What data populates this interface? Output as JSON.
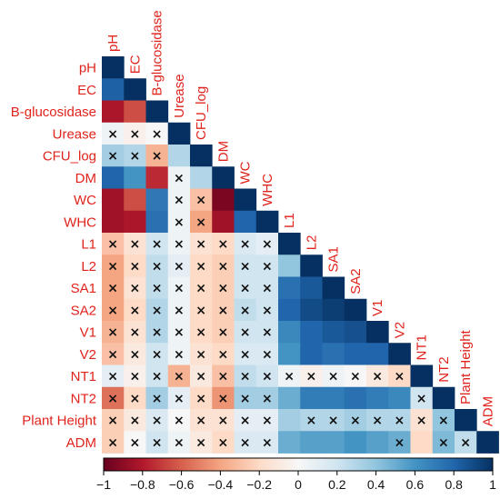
{
  "chart_data": {
    "type": "heatmap",
    "subtype": "lower-triangular correlation matrix",
    "variables": [
      "pH",
      "EC",
      "B-glucosidase",
      "Urease",
      "CFU_log",
      "DM",
      "WC",
      "WHC",
      "L1",
      "L2",
      "SA1",
      "SA2",
      "V1",
      "V2",
      "NT1",
      "NT2",
      "Plant Height",
      "ADM"
    ],
    "rows": [
      {
        "values": [
          1
        ],
        "nonsig": []
      },
      {
        "values": [
          0.82,
          1
        ],
        "nonsig": []
      },
      {
        "values": [
          -0.82,
          -0.65,
          1
        ],
        "nonsig": []
      },
      {
        "values": [
          0.05,
          -0.05,
          0.0,
          1
        ],
        "nonsig": [
          0,
          1,
          2
        ]
      },
      {
        "values": [
          0.35,
          0.3,
          -0.35,
          0.3,
          1
        ],
        "nonsig": [
          0,
          1,
          2
        ]
      },
      {
        "values": [
          0.8,
          0.6,
          -0.75,
          0.05,
          0.3,
          1
        ],
        "nonsig": [
          3
        ]
      },
      {
        "values": [
          -0.85,
          -0.65,
          0.72,
          0.05,
          -0.3,
          -0.95,
          1
        ],
        "nonsig": [
          3,
          4
        ]
      },
      {
        "values": [
          -0.85,
          -0.82,
          0.75,
          0.05,
          -0.4,
          -0.85,
          0.8,
          1
        ],
        "nonsig": [
          3,
          4
        ]
      },
      {
        "values": [
          -0.3,
          -0.15,
          0.2,
          0.05,
          -0.15,
          -0.2,
          0.15,
          0.1,
          1
        ],
        "nonsig": [
          0,
          1,
          2,
          3,
          4,
          5,
          6,
          7
        ]
      },
      {
        "values": [
          -0.4,
          -0.2,
          0.25,
          0.1,
          -0.2,
          -0.25,
          0.2,
          0.2,
          0.4,
          1
        ],
        "nonsig": [
          0,
          1,
          2,
          3,
          4,
          5,
          6,
          7
        ]
      },
      {
        "values": [
          -0.4,
          -0.15,
          0.25,
          0.05,
          -0.2,
          -0.25,
          0.2,
          0.2,
          0.75,
          0.85,
          1
        ],
        "nonsig": [
          0,
          1,
          2,
          3,
          4,
          5,
          6,
          7
        ]
      },
      {
        "values": [
          -0.4,
          -0.2,
          0.3,
          0.05,
          -0.2,
          -0.25,
          0.25,
          0.2,
          0.8,
          0.9,
          0.95,
          1
        ],
        "nonsig": [
          0,
          1,
          2,
          3,
          4,
          5,
          6,
          7
        ]
      },
      {
        "values": [
          -0.35,
          -0.15,
          0.3,
          0.05,
          -0.2,
          -0.25,
          0.2,
          0.2,
          0.65,
          0.8,
          0.85,
          0.88,
          1
        ],
        "nonsig": [
          0,
          1,
          2,
          3,
          4,
          5,
          6,
          7
        ]
      },
      {
        "values": [
          -0.3,
          -0.1,
          0.2,
          0.05,
          -0.15,
          -0.2,
          0.15,
          0.15,
          0.6,
          0.8,
          0.75,
          0.8,
          0.8,
          1
        ],
        "nonsig": [
          0,
          1,
          2,
          3,
          4,
          5,
          6,
          7
        ]
      },
      {
        "values": [
          0.1,
          -0.05,
          0.2,
          -0.35,
          -0.1,
          -0.3,
          0.25,
          0.2,
          0.05,
          -0.05,
          0.05,
          0.0,
          -0.1,
          -0.2,
          1
        ],
        "nonsig": [
          0,
          1,
          2,
          3,
          4,
          5,
          6,
          7,
          8,
          9,
          10,
          11,
          12,
          13
        ]
      },
      {
        "values": [
          -0.55,
          -0.2,
          0.35,
          0.1,
          -0.2,
          -0.45,
          0.35,
          0.35,
          0.5,
          0.7,
          0.7,
          0.75,
          0.7,
          0.65,
          0.2,
          1
        ],
        "nonsig": [
          0,
          1,
          2,
          3,
          4,
          5,
          6,
          7,
          14
        ]
      },
      {
        "values": [
          -0.25,
          -0.1,
          0.15,
          0.0,
          -0.15,
          -0.15,
          0.1,
          0.1,
          0.35,
          0.3,
          0.3,
          0.35,
          0.3,
          0.3,
          -0.15,
          0.4,
          1
        ],
        "nonsig": [
          0,
          1,
          2,
          3,
          4,
          5,
          6,
          7,
          9,
          10,
          11,
          12,
          13,
          14,
          15
        ]
      },
      {
        "values": [
          -0.25,
          0.0,
          0.2,
          0.05,
          -0.1,
          -0.2,
          0.15,
          0.15,
          0.5,
          0.55,
          0.55,
          0.6,
          0.55,
          0.5,
          -0.2,
          0.45,
          0.25,
          1
        ],
        "nonsig": [
          0,
          1,
          2,
          3,
          4,
          5,
          6,
          7,
          13,
          15,
          16
        ]
      }
    ],
    "colorbar": {
      "range": [
        -1,
        1
      ],
      "ticks": [
        "−1",
        "−0.8",
        "−0.6",
        "−0.4",
        "−0.2",
        "0",
        "0.2",
        "0.4",
        "0.6",
        "0.8",
        "1"
      ],
      "colors": [
        "#67001f",
        "#b2182b",
        "#d6604d",
        "#f4a582",
        "#fddbc7",
        "#f7f7f7",
        "#d1e5f0",
        "#92c5de",
        "#4393c3",
        "#2166ac",
        "#053061"
      ]
    },
    "nonsignificant_marker": "×",
    "label_color": "#e0231c"
  }
}
